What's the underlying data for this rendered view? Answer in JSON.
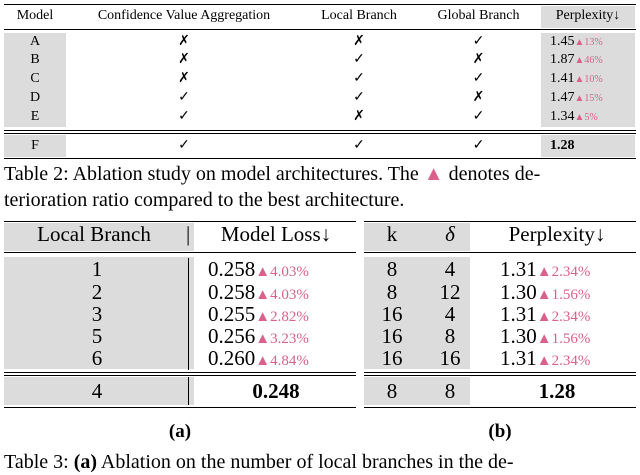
{
  "table2": {
    "headers": [
      "Model",
      "Confidence Value Aggregation",
      "Local Branch",
      "Global Branch",
      "Perplexity↓"
    ],
    "rows": [
      {
        "model": "A",
        "cva": "✗",
        "local": "✗",
        "global": "✓",
        "ppl": "1.45",
        "delta": "▲13%"
      },
      {
        "model": "B",
        "cva": "✗",
        "local": "✓",
        "global": "✗",
        "ppl": "1.87",
        "delta": "▲46%"
      },
      {
        "model": "C",
        "cva": "✗",
        "local": "✓",
        "global": "✓",
        "ppl": "1.41",
        "delta": "▲10%"
      },
      {
        "model": "D",
        "cva": "✓",
        "local": "✓",
        "global": "✗",
        "ppl": "1.47",
        "delta": "▲15%"
      },
      {
        "model": "E",
        "cva": "✓",
        "local": "✗",
        "global": "✓",
        "ppl": "1.34",
        "delta": "▲5%"
      }
    ],
    "best": {
      "model": "F",
      "cva": "✓",
      "local": "✓",
      "global": "✓",
      "ppl": "1.28"
    },
    "caption_line1_pre": "Table 2:  Ablation study on model architectures.  The",
    "caption_marker": "▲",
    "caption_line1_post": "denotes de-",
    "caption_line2": "terioration ratio compared to the best architecture."
  },
  "table3a": {
    "headers": [
      "Local Branch",
      "|",
      "Model Loss↓"
    ],
    "rows": [
      {
        "n": "1",
        "loss": "0.258",
        "delta": "▲4.03%"
      },
      {
        "n": "2",
        "loss": "0.258",
        "delta": "▲4.03%"
      },
      {
        "n": "3",
        "loss": "0.255",
        "delta": "▲2.82%"
      },
      {
        "n": "5",
        "loss": "0.256",
        "delta": "▲3.23%"
      },
      {
        "n": "6",
        "loss": "0.260",
        "delta": "▲4.84%"
      }
    ],
    "best": {
      "n": "4",
      "loss": "0.248"
    },
    "label": "(a)"
  },
  "table3b": {
    "headers": [
      "k",
      "δ",
      "Perplexity↓"
    ],
    "rows": [
      {
        "k": "8",
        "d": "4",
        "ppl": "1.31",
        "delta": "▲2.34%"
      },
      {
        "k": "8",
        "d": "12",
        "ppl": "1.30",
        "delta": "▲1.56%"
      },
      {
        "k": "16",
        "d": "4",
        "ppl": "1.31",
        "delta": "▲2.34%"
      },
      {
        "k": "16",
        "d": "8",
        "ppl": "1.30",
        "delta": "▲1.56%"
      },
      {
        "k": "16",
        "d": "16",
        "ppl": "1.31",
        "delta": "▲2.34%"
      }
    ],
    "best": {
      "k": "8",
      "d": "8",
      "ppl": "1.28"
    },
    "label": "(b)"
  },
  "table3_caption": {
    "pre": "Table 3:",
    "bold": "(a)",
    "post": "Ablation on the number of local branches in the de-"
  }
}
